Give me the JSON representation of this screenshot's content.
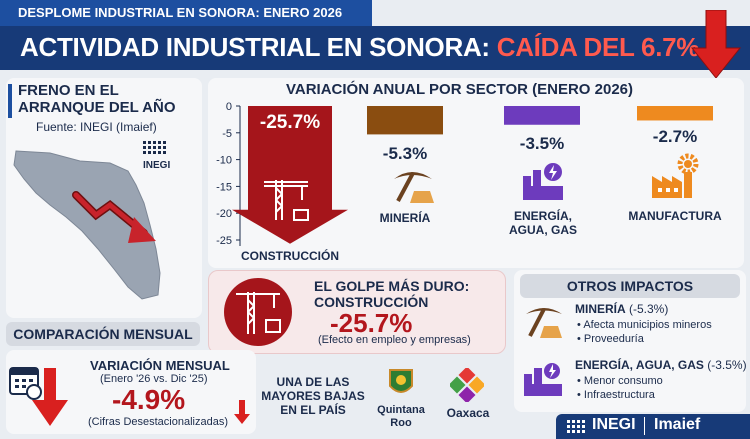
{
  "header": {
    "kicker": "DESPLOME INDUSTRIAL EN SONORA: ENERO 2026",
    "title_main": "ACTIVIDAD INDUSTRIAL EN SONORA: ",
    "title_accent": "CAÍDA DEL 6.7%"
  },
  "colors": {
    "navy": "#173a78",
    "construction": "#a5151b",
    "mining": "#8a4d10",
    "energy": "#6d3bbd",
    "manufacturing": "#ee8a1f",
    "accent_red": "#d9201f"
  },
  "left_panel": {
    "heading_line1": "FRENO EN EL",
    "heading_line2": "ARRANQUE DEL AÑO",
    "source": "Fuente: INEGI (Imaief)",
    "logo_text": "INEGI"
  },
  "chart_data": {
    "type": "bar",
    "title": "VARIACIÓN ANUAL POR SECTOR (ENERO 2026)",
    "categories": [
      "CONSTRUCCIÓN",
      "MINERÍA",
      "ENERGÍA, AGUA, GAS",
      "MANUFACTURA"
    ],
    "values": [
      -25.7,
      -5.3,
      -3.5,
      -2.7
    ],
    "value_labels": [
      "-25.7%",
      "-5.3%",
      "-3.5%",
      "-2.7%"
    ],
    "yticks": [
      "0",
      "-5",
      "-10",
      "-15",
      "-20",
      "-25"
    ],
    "ylim": [
      -25,
      0
    ],
    "grid": false
  },
  "hardest_hit": {
    "title_line1": "EL GOLPE MÁS DURO:",
    "title_line2": "CONSTRUCCIÓN",
    "value": "-25.7%",
    "note": "(Efecto en empleo y empresas)"
  },
  "monthly": {
    "pill": "COMPARACIÓN MENSUAL",
    "label": "VARIACIÓN MENSUAL",
    "period": "(Enero '26 vs. Dic '25)",
    "value": "-4.9%",
    "note": "(Cifras Desestacionalizadas)"
  },
  "ranking": {
    "line1": "UNA DE LAS",
    "line2": "MAYORES BAJAS",
    "line3": "EN EL PAÍS",
    "state1_line1": "Quintana",
    "state1_line2": "Roo",
    "state2": "Oaxaca"
  },
  "other_impacts": {
    "pill": "OTROS IMPACTOS",
    "mining_title": "MINERÍA",
    "mining_value": " (-5.3%)",
    "mining_bullets": [
      "Afecta municipios mineros",
      "Proveeduría"
    ],
    "energy_title": "ENERGÍA, AGUA, GAS",
    "energy_value": " (-3.5%)",
    "energy_bullets": [
      "Menor consumo",
      "Infraestructura"
    ]
  },
  "footer": {
    "brand": "INEGI",
    "sub": "Imaief"
  }
}
